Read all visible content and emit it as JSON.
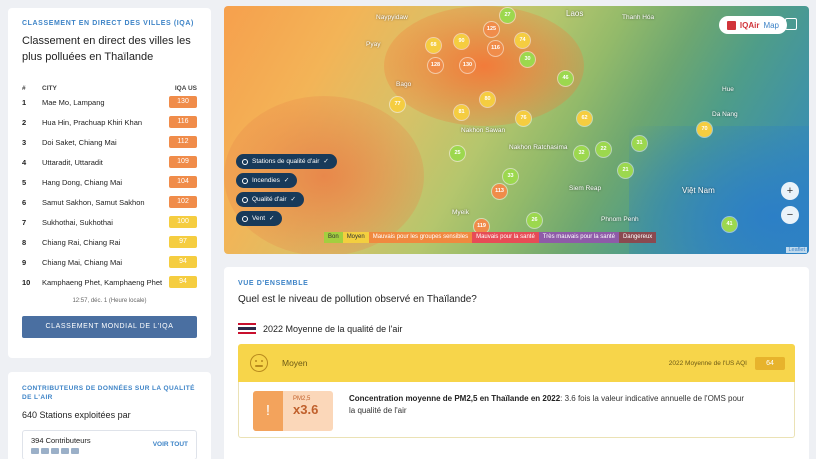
{
  "ranking": {
    "tag": "CLASSEMENT EN DIRECT DES VILLES (IQA)",
    "title": "Classement en direct des villes les plus polluées en Thaïlande",
    "col_num": "#",
    "col_city": "CITY",
    "col_aqi": "IQA US",
    "rows": [
      {
        "rank": "1",
        "city": "Mae Mo, Lampang",
        "aqi": "130",
        "color": "#f08c4a"
      },
      {
        "rank": "2",
        "city": "Hua Hin, Prachuap Khiri Khan",
        "aqi": "116",
        "color": "#f08c4a"
      },
      {
        "rank": "3",
        "city": "Doi Saket, Chiang Mai",
        "aqi": "112",
        "color": "#f08c4a"
      },
      {
        "rank": "4",
        "city": "Uttaradit, Uttaradit",
        "aqi": "109",
        "color": "#f08c4a"
      },
      {
        "rank": "5",
        "city": "Hang Dong, Chiang Mai",
        "aqi": "104",
        "color": "#f08c4a"
      },
      {
        "rank": "6",
        "city": "Samut Sakhon, Samut Sakhon",
        "aqi": "102",
        "color": "#f08c4a"
      },
      {
        "rank": "7",
        "city": "Sukhothai, Sukhothai",
        "aqi": "100",
        "color": "#f5cd40"
      },
      {
        "rank": "8",
        "city": "Chiang Rai, Chiang Rai",
        "aqi": "97",
        "color": "#f5cd40"
      },
      {
        "rank": "9",
        "city": "Chiang Mai, Chiang Mai",
        "aqi": "94",
        "color": "#f5cd40"
      },
      {
        "rank": "10",
        "city": "Kamphaeng Phet, Kamphaeng Phet",
        "aqi": "94",
        "color": "#f5cd40"
      }
    ],
    "timestamp": "12:57, déc. 1 (Heure locale)",
    "button": "CLASSEMENT MONDIAL DE L'IQA"
  },
  "contributors": {
    "title": "CONTRIBUTEURS DE DONNÉES SUR LA QUALITÉ DE L'AIR",
    "stations": "640 Stations exploitées par",
    "count": "394 Contributeurs",
    "see_all": "VOIR TOUT"
  },
  "map": {
    "brand": "IQAir",
    "brand_suffix": "Map",
    "labels": [
      "Laos",
      "Naypyidaw",
      "Thanh Hóa",
      "Pyay",
      "Bago",
      "Hue",
      "Da Nang",
      "Nakhon Sawan",
      "Nakhon Ratchasima",
      "Siem Reap",
      "Phnom Penh",
      "Việt Nam",
      "Myeik"
    ],
    "markers": [
      {
        "v": "27",
        "c": "#9cd84e"
      },
      {
        "v": "125",
        "c": "#f08c4a"
      },
      {
        "v": "74",
        "c": "#f5cd40"
      },
      {
        "v": "68",
        "c": "#f5cd40"
      },
      {
        "v": "90",
        "c": "#f5cd40"
      },
      {
        "v": "116",
        "c": "#f08c4a"
      },
      {
        "v": "130",
        "c": "#f08c4a"
      },
      {
        "v": "128",
        "c": "#f08c4a"
      },
      {
        "v": "30",
        "c": "#9cd84e"
      },
      {
        "v": "46",
        "c": "#9cd84e"
      },
      {
        "v": "77",
        "c": "#f5cd40"
      },
      {
        "v": "81",
        "c": "#f5cd40"
      },
      {
        "v": "80",
        "c": "#f5cd40"
      },
      {
        "v": "76",
        "c": "#f5cd40"
      },
      {
        "v": "32",
        "c": "#9cd84e"
      },
      {
        "v": "70",
        "c": "#f5cd40"
      },
      {
        "v": "25",
        "c": "#9cd84e"
      },
      {
        "v": "113",
        "c": "#f08c4a"
      },
      {
        "v": "33",
        "c": "#9cd84e"
      },
      {
        "v": "26",
        "c": "#9cd84e"
      },
      {
        "v": "21",
        "c": "#9cd84e"
      },
      {
        "v": "119",
        "c": "#f08c4a"
      },
      {
        "v": "22",
        "c": "#9cd84e"
      },
      {
        "v": "62",
        "c": "#f5cd40"
      },
      {
        "v": "31",
        "c": "#9cd84e"
      },
      {
        "v": "41",
        "c": "#9cd84e"
      }
    ],
    "layers": [
      "Stations de qualité d'air",
      "Incendies",
      "Qualité d'air",
      "Vent"
    ],
    "legend": [
      {
        "label": "Bon",
        "color": "#a3cf3f"
      },
      {
        "label": "Moyen",
        "color": "#f3cf3f"
      },
      {
        "label": "Mauvais pour les groupes sensibles",
        "color": "#f0893f"
      },
      {
        "label": "Mauvais pour la santé",
        "color": "#e74c56"
      },
      {
        "label": "Très mauvais pour la santé",
        "color": "#8e5ba8"
      },
      {
        "label": "Dangereux",
        "color": "#8a4a50"
      }
    ],
    "attribution": "Leaflet"
  },
  "overview": {
    "tag": "VUE D'ENSEMBLE",
    "question": "Quel est le niveau de pollution observé en Thaïlande?",
    "year_label": "2022 Moyenne de la qualité de l'air",
    "level": "Moyen",
    "avg_label": "2022 Moyenne de l'US AQI",
    "avg_value": "64",
    "pm_label": "PM2,5",
    "pm_factor": "x3.6",
    "warn_symbol": "!",
    "description_bold": "Concentration moyenne de PM2,5 en Thaïlande en 2022",
    "description_rest": ": 3.6 fois la valeur indicative annuelle de l'OMS pour la qualité de l'air"
  }
}
